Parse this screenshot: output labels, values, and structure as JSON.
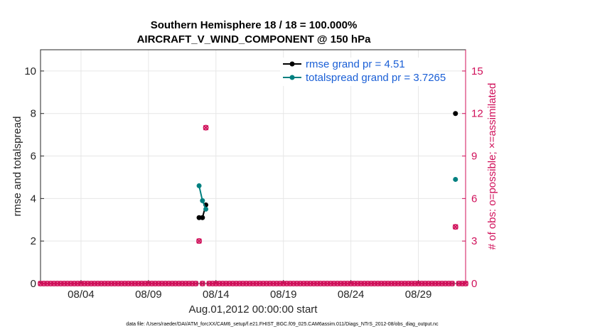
{
  "chart_data": {
    "type": "line",
    "title_line1": "Southern Hemisphere 18 / 18 = 100.000%",
    "title_line2": "AIRCRAFT_V_WIND_COMPONENT @ 150 hPa",
    "xlabel": "Aug.01,2012 00:00:00 start",
    "ylabel_left": "rmse and totalspread",
    "ylabel_right": "# of obs: o=possible; ×=assimilated",
    "footer": "data file: /Users/raeder/DAI/ATM_forcXX/CAM6_setup/f.e21.FHIST_BGC.f09_025.CAM6assim.011/Diags_NTrS_2012-08/obs_diag_output.nc",
    "xlim": [
      0,
      31.5
    ],
    "ylim_left": [
      0,
      11
    ],
    "ylim_right": [
      0,
      16.5
    ],
    "x_ticks": [
      {
        "value": 3,
        "label": "08/04"
      },
      {
        "value": 8,
        "label": "08/09"
      },
      {
        "value": 13,
        "label": "08/14"
      },
      {
        "value": 18,
        "label": "08/19"
      },
      {
        "value": 23,
        "label": "08/24"
      },
      {
        "value": 28,
        "label": "08/29"
      }
    ],
    "y_ticks_left": [
      {
        "value": 0,
        "label": "0"
      },
      {
        "value": 2,
        "label": "2"
      },
      {
        "value": 4,
        "label": "4"
      },
      {
        "value": 6,
        "label": "6"
      },
      {
        "value": 8,
        "label": "8"
      },
      {
        "value": 10,
        "label": "10"
      }
    ],
    "y_ticks_right": [
      {
        "value": 0,
        "label": "0"
      },
      {
        "value": 3,
        "label": "3"
      },
      {
        "value": 6,
        "label": "6"
      },
      {
        "value": 9,
        "label": "9"
      },
      {
        "value": 12,
        "label": "12"
      },
      {
        "value": 15,
        "label": "15"
      }
    ],
    "series": [
      {
        "name": "rmse",
        "legend": "rmse grand pr = 4.51",
        "color": "#000000",
        "segments": [
          [
            {
              "x": 11.75,
              "y": 3.1
            },
            {
              "x": 12.0,
              "y": 3.1
            },
            {
              "x": 12.25,
              "y": 3.7
            }
          ],
          [
            {
              "x": 30.75,
              "y": 8.0
            }
          ]
        ]
      },
      {
        "name": "totalspread",
        "legend": "totalspread grand pr = 3.7265",
        "color": "#008080",
        "segments": [
          [
            {
              "x": 11.75,
              "y": 4.6
            },
            {
              "x": 12.0,
              "y": 3.9
            },
            {
              "x": 12.25,
              "y": 3.5
            }
          ],
          [
            {
              "x": 30.75,
              "y": 4.9
            }
          ]
        ]
      }
    ],
    "obs_counts": {
      "color": "#d0105a",
      "x_start": 0.0,
      "x_end": 31.5,
      "x_step": 0.25,
      "nonzero": [
        {
          "x": 11.75,
          "possible": 3,
          "assimilated": 3
        },
        {
          "x": 12.25,
          "possible": 11,
          "assimilated": 11
        },
        {
          "x": 30.75,
          "possible": 4,
          "assimilated": 4
        }
      ]
    },
    "grid": true
  }
}
